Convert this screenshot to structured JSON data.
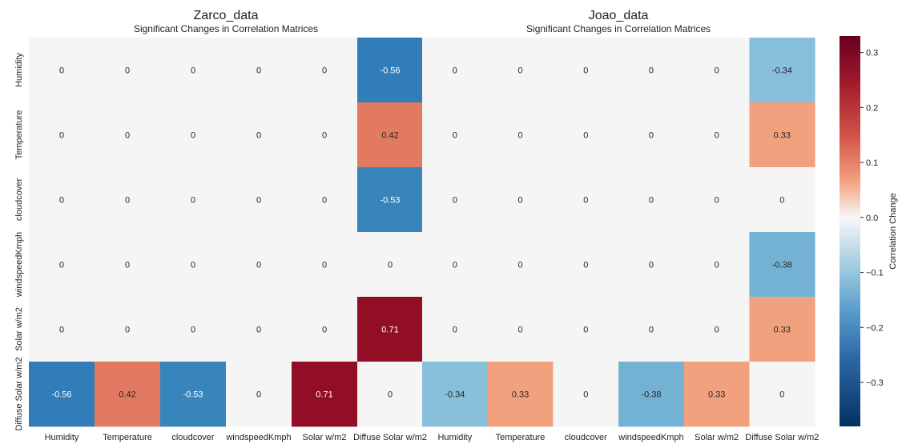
{
  "chart_data": {
    "type": "heatmap",
    "variables": [
      "Humidity",
      "Temperature",
      "cloudcover",
      "windspeedKmph",
      "Solar w/m2",
      "Diffuse Solar w/m2"
    ],
    "panels": [
      {
        "title": "Zarco_data",
        "subtitle": "Significant Changes in Correlation Matrices",
        "values": [
          [
            0,
            0,
            0,
            0,
            0,
            -0.56
          ],
          [
            0,
            0,
            0,
            0,
            0,
            0.42
          ],
          [
            0,
            0,
            0,
            0,
            0,
            -0.53
          ],
          [
            0,
            0,
            0,
            0,
            0,
            0
          ],
          [
            0,
            0,
            0,
            0,
            0,
            0.71
          ],
          [
            -0.56,
            0.42,
            -0.53,
            0,
            0.71,
            0
          ]
        ]
      },
      {
        "title": "Joao_data",
        "subtitle": "Significant Changes in Correlation Matrices",
        "values": [
          [
            0,
            0,
            0,
            0,
            0,
            -0.34
          ],
          [
            0,
            0,
            0,
            0,
            0,
            0.33
          ],
          [
            0,
            0,
            0,
            0,
            0,
            0
          ],
          [
            0,
            0,
            0,
            0,
            0,
            -0.38
          ],
          [
            0,
            0,
            0,
            0,
            0,
            0.33
          ],
          [
            -0.34,
            0.33,
            0,
            -0.38,
            0.33,
            0
          ]
        ]
      }
    ],
    "colorbar": {
      "label": "Correlation Change",
      "range": [
        -0.38,
        0.33
      ],
      "ticks": [
        0.3,
        0.2,
        0.1,
        0.0,
        -0.1,
        -0.2,
        -0.3
      ],
      "tick_labels": [
        "0.3",
        "0.2",
        "0.1",
        "0.0",
        "−0.1",
        "−0.2",
        "−0.3"
      ],
      "colormap": "RdBu_r"
    },
    "colors": {
      "zero_cell": "#f5f5f5",
      "positive_max": "#67001f",
      "negative_max": "#053061"
    }
  }
}
